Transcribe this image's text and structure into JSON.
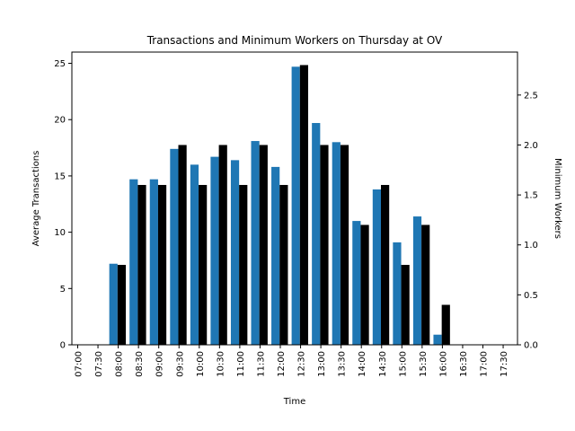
{
  "chart_data": {
    "type": "bar",
    "title": "Transactions and Minimum Workers on Thursday at OV",
    "xlabel": "Time",
    "ylabel_left": "Average Transactions",
    "ylabel_right": "Minimum Workers",
    "categories": [
      "07:00",
      "07:30",
      "08:00",
      "08:30",
      "09:00",
      "09:30",
      "10:00",
      "10:30",
      "11:00",
      "11:30",
      "12:00",
      "12:30",
      "13:00",
      "13:30",
      "14:00",
      "14:30",
      "15:00",
      "15:30",
      "16:00",
      "16:30",
      "17:00",
      "17:30"
    ],
    "ylim_left": [
      0,
      26.0
    ],
    "ylim_right": [
      0,
      2.93
    ],
    "yticks_left": [
      0,
      5,
      10,
      15,
      20,
      25
    ],
    "yticks_right": [
      0.0,
      0.5,
      1.0,
      1.5,
      2.0,
      2.5
    ],
    "grid": false,
    "series": [
      {
        "axis": "left",
        "color": "#1f77b4",
        "values": [
          0,
          7.2,
          14.7,
          14.7,
          17.4,
          16.0,
          16.7,
          16.4,
          18.1,
          15.8,
          24.7,
          19.7,
          18.0,
          11.0,
          13.8,
          9.1,
          11.4,
          0.9,
          0,
          0,
          0,
          0
        ]
      },
      {
        "axis": "right",
        "color": "#000000",
        "values": [
          0,
          0.8,
          1.6,
          1.6,
          2.0,
          1.6,
          2.0,
          1.6,
          2.0,
          1.6,
          2.8,
          2.0,
          2.0,
          1.2,
          1.6,
          0.8,
          1.2,
          0.4,
          0,
          0,
          0,
          0
        ]
      }
    ]
  }
}
